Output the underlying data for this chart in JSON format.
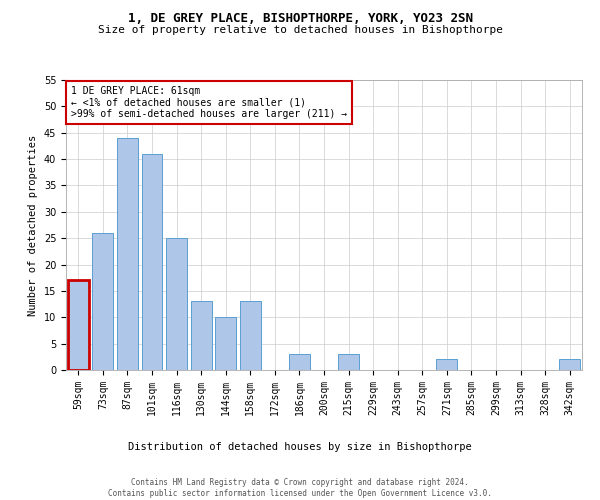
{
  "title": "1, DE GREY PLACE, BISHOPTHORPE, YORK, YO23 2SN",
  "subtitle": "Size of property relative to detached houses in Bishopthorpe",
  "xlabel": "Distribution of detached houses by size in Bishopthorpe",
  "ylabel": "Number of detached properties",
  "categories": [
    "59sqm",
    "73sqm",
    "87sqm",
    "101sqm",
    "116sqm",
    "130sqm",
    "144sqm",
    "158sqm",
    "172sqm",
    "186sqm",
    "200sqm",
    "215sqm",
    "229sqm",
    "243sqm",
    "257sqm",
    "271sqm",
    "285sqm",
    "299sqm",
    "313sqm",
    "328sqm",
    "342sqm"
  ],
  "values": [
    17,
    26,
    44,
    41,
    25,
    13,
    10,
    13,
    0,
    3,
    0,
    3,
    0,
    0,
    0,
    2,
    0,
    0,
    0,
    0,
    2
  ],
  "bar_color": "#aec6e8",
  "bar_edge_color": "#5a9fd4",
  "highlight_bar_index": 0,
  "highlight_color": "#cc0000",
  "annotation_text": "1 DE GREY PLACE: 61sqm\n← <1% of detached houses are smaller (1)\n>99% of semi-detached houses are larger (211) →",
  "annotation_box_color": "#ffffff",
  "annotation_box_edge_color": "#cc0000",
  "ylim": [
    0,
    55
  ],
  "yticks": [
    0,
    5,
    10,
    15,
    20,
    25,
    30,
    35,
    40,
    45,
    50,
    55
  ],
  "footer_text": "Contains HM Land Registry data © Crown copyright and database right 2024.\nContains public sector information licensed under the Open Government Licence v3.0.",
  "bg_color": "#ffffff",
  "grid_color": "#cccccc",
  "title_fontsize": 9,
  "subtitle_fontsize": 8,
  "axis_label_fontsize": 7.5,
  "tick_fontsize": 7,
  "annotation_fontsize": 7,
  "footer_fontsize": 5.5
}
